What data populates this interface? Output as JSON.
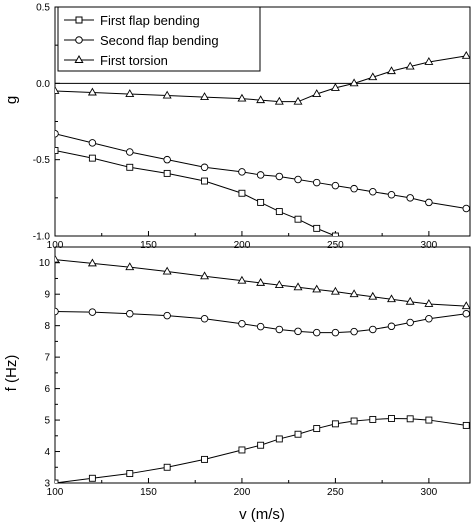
{
  "chart_data": [
    {
      "type": "line",
      "title": "",
      "xlabel": "",
      "ylabel": "g",
      "xlim": [
        100,
        322
      ],
      "ylim": [
        -1.0,
        0.5
      ],
      "xticks": [
        100,
        150,
        200,
        250,
        300
      ],
      "yticks": [
        -1.0,
        -0.5,
        0.0,
        0.5
      ],
      "xtick_labels": [
        "100",
        "150",
        "200",
        "250",
        "300"
      ],
      "ytick_labels": [
        "-1.0",
        "-0.5",
        "0.0",
        "0.5"
      ],
      "zero_line": true,
      "grid": false,
      "legend_position": "top-left",
      "series": [
        {
          "name": "First flap bending",
          "marker": "square",
          "x": [
            100,
            120,
            140,
            160,
            180,
            200,
            210,
            220,
            230,
            240,
            250
          ],
          "y": [
            -0.44,
            -0.49,
            -0.55,
            -0.59,
            -0.64,
            -0.72,
            -0.78,
            -0.84,
            -0.89,
            -0.95,
            -1.0
          ]
        },
        {
          "name": "Second flap bending",
          "marker": "circle",
          "x": [
            100,
            120,
            140,
            160,
            180,
            200,
            210,
            220,
            230,
            240,
            250,
            260,
            270,
            280,
            290,
            300,
            320
          ],
          "y": [
            -0.33,
            -0.39,
            -0.45,
            -0.5,
            -0.55,
            -0.58,
            -0.6,
            -0.61,
            -0.63,
            -0.65,
            -0.67,
            -0.69,
            -0.71,
            -0.73,
            -0.75,
            -0.78,
            -0.82
          ]
        },
        {
          "name": "First torsion",
          "marker": "triangle",
          "x": [
            100,
            120,
            140,
            160,
            180,
            200,
            210,
            220,
            230,
            240,
            250,
            260,
            270,
            280,
            290,
            300,
            320
          ],
          "y": [
            -0.05,
            -0.06,
            -0.07,
            -0.08,
            -0.09,
            -0.1,
            -0.11,
            -0.12,
            -0.12,
            -0.07,
            -0.03,
            0.0,
            0.04,
            0.08,
            0.11,
            0.14,
            0.18
          ]
        }
      ]
    },
    {
      "type": "line",
      "title": "",
      "xlabel": "v (m/s)",
      "ylabel": "f (Hz)",
      "xlim": [
        100,
        322
      ],
      "ylim": [
        3,
        10.5
      ],
      "xticks": [
        100,
        150,
        200,
        250,
        300
      ],
      "yticks": [
        3,
        4,
        5,
        6,
        7,
        8,
        9,
        10
      ],
      "xtick_labels": [
        "100",
        "150",
        "200",
        "250",
        "300"
      ],
      "ytick_labels": [
        "3",
        "4",
        "5",
        "6",
        "7",
        "8",
        "9",
        "10"
      ],
      "grid": false,
      "series": [
        {
          "name": "First flap bending",
          "marker": "square",
          "x": [
            100,
            120,
            140,
            160,
            180,
            200,
            210,
            220,
            230,
            240,
            250,
            260,
            270,
            280,
            290,
            300,
            320
          ],
          "y": [
            3.0,
            3.15,
            3.3,
            3.5,
            3.75,
            4.05,
            4.2,
            4.4,
            4.55,
            4.73,
            4.88,
            4.97,
            5.02,
            5.05,
            5.04,
            5.0,
            4.83
          ]
        },
        {
          "name": "Second flap bending",
          "marker": "circle",
          "x": [
            100,
            120,
            140,
            160,
            180,
            200,
            210,
            220,
            230,
            240,
            250,
            260,
            270,
            280,
            290,
            300,
            320
          ],
          "y": [
            8.45,
            8.43,
            8.38,
            8.32,
            8.22,
            8.06,
            7.97,
            7.88,
            7.82,
            7.78,
            7.78,
            7.81,
            7.88,
            7.98,
            8.1,
            8.22,
            8.38
          ]
        },
        {
          "name": "First torsion",
          "marker": "triangle",
          "x": [
            100,
            120,
            140,
            160,
            180,
            200,
            210,
            220,
            230,
            240,
            250,
            260,
            270,
            280,
            290,
            300,
            320
          ],
          "y": [
            10.1,
            9.98,
            9.86,
            9.72,
            9.57,
            9.43,
            9.36,
            9.29,
            9.22,
            9.15,
            9.08,
            9.0,
            8.92,
            8.84,
            8.76,
            8.69,
            8.62
          ]
        }
      ]
    }
  ]
}
